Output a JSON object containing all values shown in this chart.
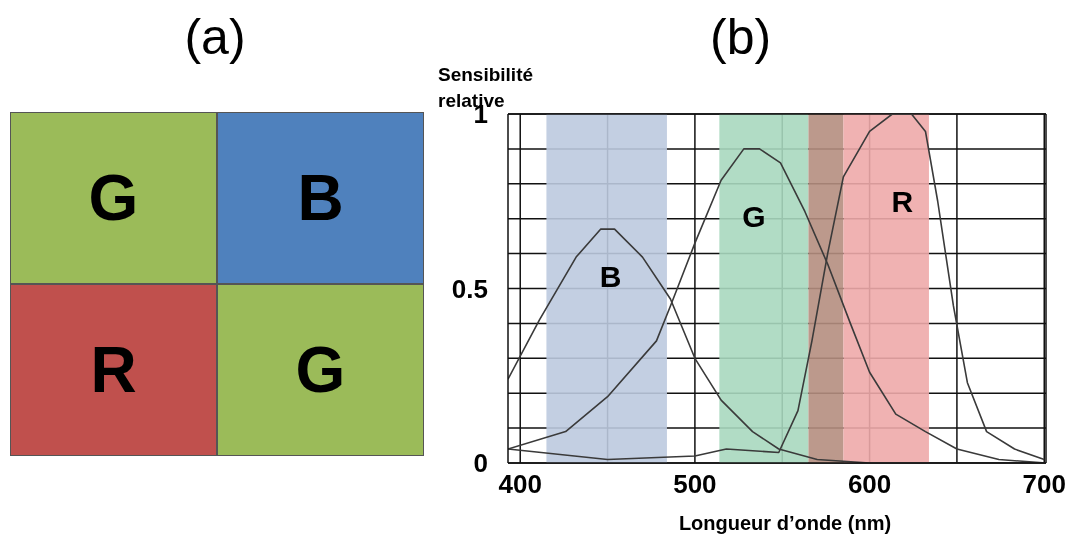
{
  "chart_data": [
    {
      "type": "other",
      "title": "(a)",
      "categories": [
        "G",
        "B",
        "R",
        "G"
      ],
      "colors": [
        "#9bbb59",
        "#4f81bd",
        "#c0504d",
        "#9bbb59"
      ]
    },
    {
      "type": "line",
      "title": "(b)",
      "ylabel": "Sensibilité relative",
      "xlabel": "Longueur d’onde (nm)",
      "xlim": [
        393,
        701
      ],
      "xticks": [
        400,
        {
          "value": 450,
          "label": null
        },
        500,
        {
          "value": 550,
          "label": null
        },
        600,
        {
          "value": 650,
          "label": null
        },
        700
      ],
      "ylim": [
        0,
        1
      ],
      "yticks": [
        0,
        {
          "value": 0.1,
          "label": null
        },
        {
          "value": 0.2,
          "label": null
        },
        {
          "value": 0.3,
          "label": null
        },
        {
          "value": 0.4,
          "label": null
        },
        0.5,
        {
          "value": 0.6,
          "label": null
        },
        {
          "value": 0.7,
          "label": null
        },
        {
          "value": 0.8,
          "label": null
        },
        {
          "value": 0.9,
          "label": null
        },
        1
      ],
      "grid": true,
      "marker": "none",
      "line_style": "solid",
      "bands": [
        {
          "axis": "x",
          "from": 415,
          "to": 484,
          "color": "#bccadf"
        },
        {
          "axis": "x",
          "from": 514,
          "to": 565,
          "color": "#a8d8bf"
        },
        {
          "axis": "x",
          "from": 565,
          "to": 585,
          "color": "#b58e80"
        },
        {
          "axis": "x",
          "from": 585,
          "to": 634,
          "color": "#eeaaaa"
        }
      ],
      "series": [
        {
          "name": "B",
          "color": "#3a3a3a",
          "x": [
            393,
            411,
            432,
            446,
            454,
            470,
            486,
            500,
            515,
            533,
            548,
            570,
            600,
            650,
            701
          ],
          "values": [
            0.24,
            0.41,
            0.59,
            0.67,
            0.67,
            0.59,
            0.47,
            0.3,
            0.18,
            0.09,
            0.04,
            0.01,
            0,
            0,
            0
          ]
        },
        {
          "name": "G",
          "color": "#3a3a3a",
          "x": [
            393,
            426,
            450,
            478,
            486,
            500,
            515,
            528,
            537,
            549,
            563,
            576,
            589,
            600,
            615,
            632,
            650,
            674,
            701
          ],
          "values": [
            0.04,
            0.09,
            0.19,
            0.35,
            0.45,
            0.63,
            0.81,
            0.9,
            0.9,
            0.86,
            0.72,
            0.57,
            0.4,
            0.26,
            0.14,
            0.09,
            0.04,
            0.01,
            0
          ]
        },
        {
          "name": "R",
          "color": "#3a3a3a",
          "x": [
            393,
            450,
            500,
            518,
            548,
            559,
            567,
            576,
            585,
            600,
            613,
            624,
            632,
            639,
            648,
            656,
            667,
            683,
            700
          ],
          "values": [
            0.04,
            0.01,
            0.02,
            0.04,
            0.03,
            0.15,
            0.35,
            0.6,
            0.82,
            0.95,
            1,
            1,
            0.95,
            0.75,
            0.45,
            0.23,
            0.09,
            0.04,
            0.01
          ]
        }
      ]
    }
  ]
}
